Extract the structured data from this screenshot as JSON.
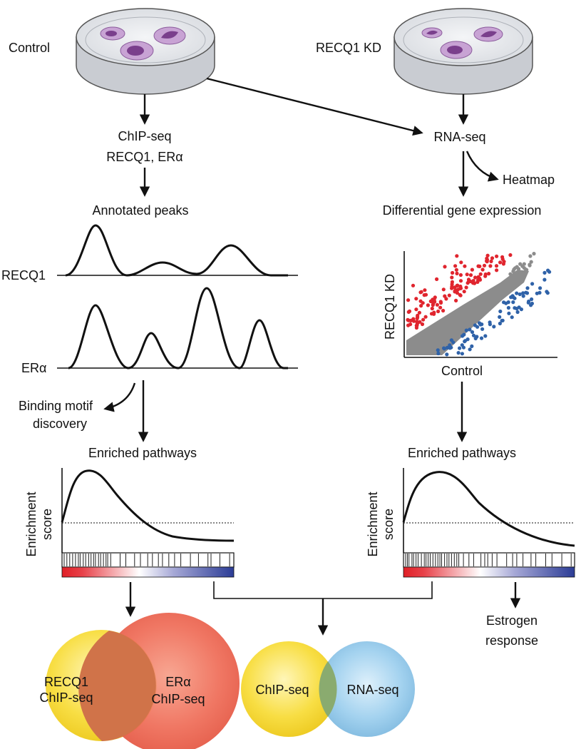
{
  "labels": {
    "control": "Control",
    "recq1_kd": "RECQ1 KD",
    "chipseq_line1": "ChIP-seq",
    "chipseq_line2": "RECQ1, ERα",
    "rnaseq": "RNA-seq",
    "heatmap": "Heatmap",
    "annotated_peaks": "Annotated peaks",
    "differential_expression": "Differential gene expression",
    "track_recq1": "RECQ1",
    "track_era": "ERα",
    "motif_line1": "Binding motif",
    "motif_line2": "discovery",
    "enriched_left": "Enriched pathways",
    "enriched_right": "Enriched pathways",
    "enrichment_line1": "Enrichment",
    "enrichment_line2": "score",
    "scatter_ylabel": "RECQ1 KD",
    "scatter_xlabel": "Control",
    "estrogen_line1": "Estrogen",
    "estrogen_line2": "response",
    "venn1_left_line1": "RECQ1",
    "venn1_left_line2": "ChIP-seq",
    "venn1_right_line1": "ERα",
    "venn1_right_line2": "ChIP-seq",
    "venn2_left": "ChIP-seq",
    "venn2_right": "RNA-seq"
  },
  "colors": {
    "dish_body": "#c9ccd2",
    "dish_top": "#e6e8ec",
    "cell_outer": "#c8a3d4",
    "cell_nucleus": "#7a3f8c",
    "scatter_up": "#e0252e",
    "scatter_down": "#2f62a8",
    "scatter_neutral": "#8c8c8c",
    "gradient_red": "#e01f26",
    "gradient_blue": "#2b3c96",
    "venn_yellow": "#f5d73a",
    "venn_red": "#ee6a54",
    "venn_blue": "#8fc6e8"
  }
}
